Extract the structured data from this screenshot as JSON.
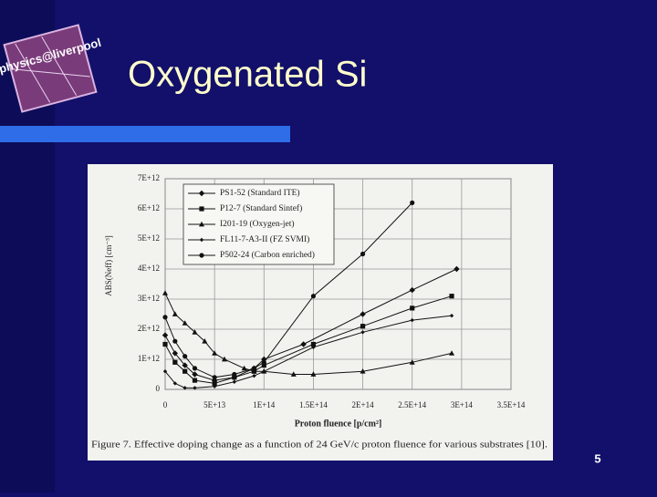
{
  "slide": {
    "logo": "physics@liverpool",
    "title": "Oxygenated Si",
    "page_number": "5"
  },
  "chart_data": {
    "type": "line",
    "x_label": "Proton fluence [p/cm²]",
    "y_label": "ABS(Neff) [cm⁻³]",
    "caption": "Figure 7. Effective doping change as a function of 24 GeV/c proton fluence for various substrates [10].",
    "xlim": [
      0,
      350000000000000.0
    ],
    "xticks": [
      0,
      {
        "value": 50000000000000.0,
        "label": "5E+13"
      },
      {
        "value": 100000000000000.0,
        "label": "1E+14"
      },
      {
        "value": 150000000000000.0,
        "label": "1.5E+14"
      },
      {
        "value": 200000000000000.0,
        "label": "2E+14"
      },
      {
        "value": 250000000000000.0,
        "label": "2.5E+14"
      },
      {
        "value": 300000000000000.0,
        "label": "3E+14"
      },
      {
        "value": 350000000000000.0,
        "label": "3.5E+14"
      }
    ],
    "ylim": [
      0,
      7000000000000.0
    ],
    "yticks": [
      0,
      {
        "value": 1000000000000.0,
        "label": "1E+12"
      },
      {
        "value": 2000000000000.0,
        "label": "2E+12"
      },
      {
        "value": 3000000000000.0,
        "label": "3E+12"
      },
      {
        "value": 4000000000000.0,
        "label": "4E+12"
      },
      {
        "value": 5000000000000.0,
        "label": "5E+12"
      },
      {
        "value": 6000000000000.0,
        "label": "6E+12"
      },
      {
        "value": 7000000000000.0,
        "label": "7E+12"
      }
    ],
    "grid": true,
    "legend": "upper-left",
    "series": [
      {
        "name": "PS1-52 (Standard ITE)",
        "color": "#111111",
        "marker": "diamond",
        "x": [
          0,
          10000000000000.0,
          20000000000000.0,
          30000000000000.0,
          50000000000000.0,
          70000000000000.0,
          90000000000000.0,
          100000000000000.0,
          140000000000000.0,
          200000000000000.0,
          250000000000000.0,
          295000000000000.0
        ],
        "values": [
          1800000000000.0,
          1200000000000.0,
          800000000000.0,
          500000000000.0,
          300000000000.0,
          400000000000.0,
          700000000000.0,
          1000000000000.0,
          1500000000000.0,
          2500000000000.0,
          3300000000000.0,
          4000000000000.0
        ]
      },
      {
        "name": "P12-7 (Standard Sintef)",
        "color": "#111111",
        "marker": "square",
        "x": [
          0,
          10000000000000.0,
          20000000000000.0,
          30000000000000.0,
          50000000000000.0,
          70000000000000.0,
          90000000000000.0,
          100000000000000.0,
          150000000000000.0,
          200000000000000.0,
          250000000000000.0,
          290000000000000.0
        ],
        "values": [
          1500000000000.0,
          900000000000.0,
          600000000000.0,
          300000000000.0,
          200000000000.0,
          400000000000.0,
          600000000000.0,
          800000000000.0,
          1500000000000.0,
          2100000000000.0,
          2700000000000.0,
          3100000000000.0
        ]
      },
      {
        "name": "I201-19 (Oxygen-jet)",
        "color": "#111111",
        "marker": "triangle",
        "x": [
          0,
          10000000000000.0,
          20000000000000.0,
          30000000000000.0,
          40000000000000.0,
          50000000000000.0,
          60000000000000.0,
          80000000000000.0,
          90000000000000.0,
          100000000000000.0,
          130000000000000.0,
          150000000000000.0,
          200000000000000.0,
          250000000000000.0,
          290000000000000.0
        ],
        "values": [
          3200000000000.0,
          2500000000000.0,
          2200000000000.0,
          1900000000000.0,
          1600000000000.0,
          1200000000000.0,
          1000000000000.0,
          700000000000.0,
          600000000000.0,
          600000000000.0,
          500000000000.0,
          500000000000.0,
          600000000000.0,
          900000000000.0,
          1200000000000.0
        ]
      },
      {
        "name": "FL11-7-A3-II (FZ SVMI)",
        "color": "#111111",
        "marker": "small-diamond",
        "x": [
          0,
          10000000000000.0,
          20000000000000.0,
          30000000000000.0,
          50000000000000.0,
          70000000000000.0,
          90000000000000.0,
          100000000000000.0,
          150000000000000.0,
          200000000000000.0,
          250000000000000.0,
          290000000000000.0
        ],
        "values": [
          600000000000.0,
          200000000000.0,
          50000000000.0,
          50000000000.0,
          100000000000.0,
          250000000000.0,
          450000000000.0,
          600000000000.0,
          1400000000000.0,
          1900000000000.0,
          2300000000000.0,
          2450000000000.0
        ]
      },
      {
        "name": "P502-24 (Carbon enriched)",
        "color": "#111111",
        "marker": "circle",
        "x": [
          0,
          10000000000000.0,
          20000000000000.0,
          30000000000000.0,
          50000000000000.0,
          70000000000000.0,
          90000000000000.0,
          100000000000000.0,
          150000000000000.0,
          200000000000000.0,
          250000000000000.0
        ],
        "values": [
          2400000000000.0,
          1600000000000.0,
          1100000000000.0,
          700000000000.0,
          400000000000.0,
          500000000000.0,
          700000000000.0,
          900000000000.0,
          3100000000000.0,
          4500000000000.0,
          6200000000000.0
        ]
      }
    ]
  }
}
